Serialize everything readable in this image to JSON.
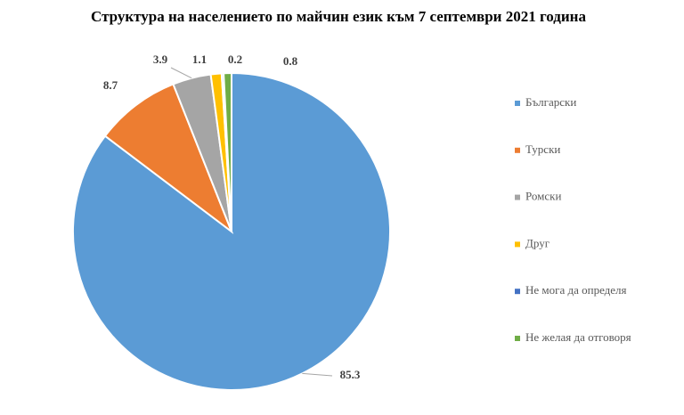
{
  "chart_data": {
    "type": "pie",
    "title": "Структура на населението по майчин език към 7 септември 2021 година",
    "categories": [
      "Български",
      "Турски",
      "Ромски",
      "Друг",
      "Не мога да определя",
      "Не желая да отговоря"
    ],
    "values": [
      85.3,
      8.7,
      3.9,
      1.1,
      0.2,
      0.8
    ],
    "colors": [
      "#5b9bd5",
      "#ed7d31",
      "#a5a5a5",
      "#ffc000",
      "#4472c4",
      "#70ad47"
    ],
    "legend": "right"
  }
}
